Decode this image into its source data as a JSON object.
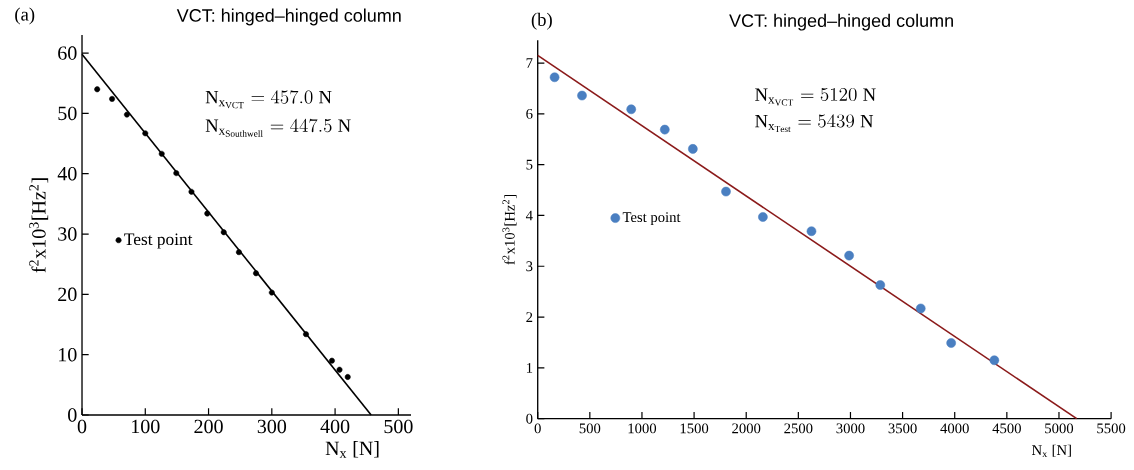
{
  "chart_data": [
    {
      "type": "scatter",
      "title": "VCT: hinged–hinged column",
      "xlabel": "N$_{x}$ [N]",
      "ylabel": "f$^{2}$x10$^{3}$[Hz$^{2}$]",
      "xlim": [
        0,
        520
      ],
      "ylim": [
        0,
        63
      ],
      "xticks": [
        0,
        100,
        200,
        300,
        400,
        500
      ],
      "yticks": [
        0,
        10,
        20,
        30,
        40,
        50,
        60
      ],
      "legend": "left",
      "annotations": [
        "(a)",
        "\\mathrm{N}_{\\mathrm{x}_{\\mathrm{VCT}}} = 457.0\\ \\mathrm{N}",
        "\\mathrm{N}_{\\mathrm{x}_{\\mathrm{Southwell}}} = 447.5\\ \\mathrm{N}"
      ],
      "series": [
        {
          "name": "Test point",
          "color": "#000000",
          "marker": "circle",
          "x": [
            24,
            47.5,
            71,
            100,
            126,
            149,
            173,
            198,
            224,
            248,
            275,
            300,
            354,
            395,
            407,
            420
          ],
          "values": [
            54.0,
            52.4,
            49.8,
            46.7,
            43.3,
            40.1,
            37.0,
            33.4,
            30.3,
            27.0,
            23.5,
            20.3,
            13.4,
            9.0,
            7.5,
            6.3
          ]
        },
        {
          "type": "line",
          "color": "#000000",
          "marker": "none",
          "x": [
            0,
            457
          ],
          "values": [
            59.8,
            0
          ]
        }
      ]
    },
    {
      "type": "scatter",
      "title": "VCT: hinged–hinged column",
      "xlabel": "N$_{x}$ [N]",
      "ylabel": "f$^{2}$x10$^{3}$[Hz$^{2}$]",
      "xlim": [
        0,
        5500
      ],
      "ylim": [
        0,
        7.45
      ],
      "xticks": [
        0,
        500,
        1000,
        1500,
        2000,
        2500,
        3000,
        3500,
        4000,
        4500,
        5000,
        5500
      ],
      "yticks": [
        0,
        1,
        2,
        3,
        4,
        5,
        6,
        7
      ],
      "legend": "left",
      "annotations": [
        "(b)",
        "\\mathrm{N}_{\\mathrm{x}_{\\mathrm{VCT}}} = 5120\\ \\mathrm{N}",
        "\\mathrm{N}_{\\mathrm{x}_{\\mathrm{Test}}} = 5439\\ \\mathrm{N}"
      ],
      "series": [
        {
          "name": "Test point",
          "color": "#4a7fc1",
          "marker": "circle",
          "x": [
            162,
            425,
            897,
            1219,
            1488,
            1806,
            2160,
            2626,
            2987,
            3286,
            3674,
            3966,
            4380
          ],
          "values": [
            6.72,
            6.36,
            6.09,
            5.69,
            5.31,
            4.47,
            3.97,
            3.69,
            3.21,
            2.63,
            2.17,
            1.49,
            1.15
          ]
        },
        {
          "type": "line",
          "color": "#8b1a1a",
          "marker": "none",
          "x": [
            0,
            5170
          ],
          "values": [
            7.15,
            0
          ]
        }
      ]
    }
  ]
}
